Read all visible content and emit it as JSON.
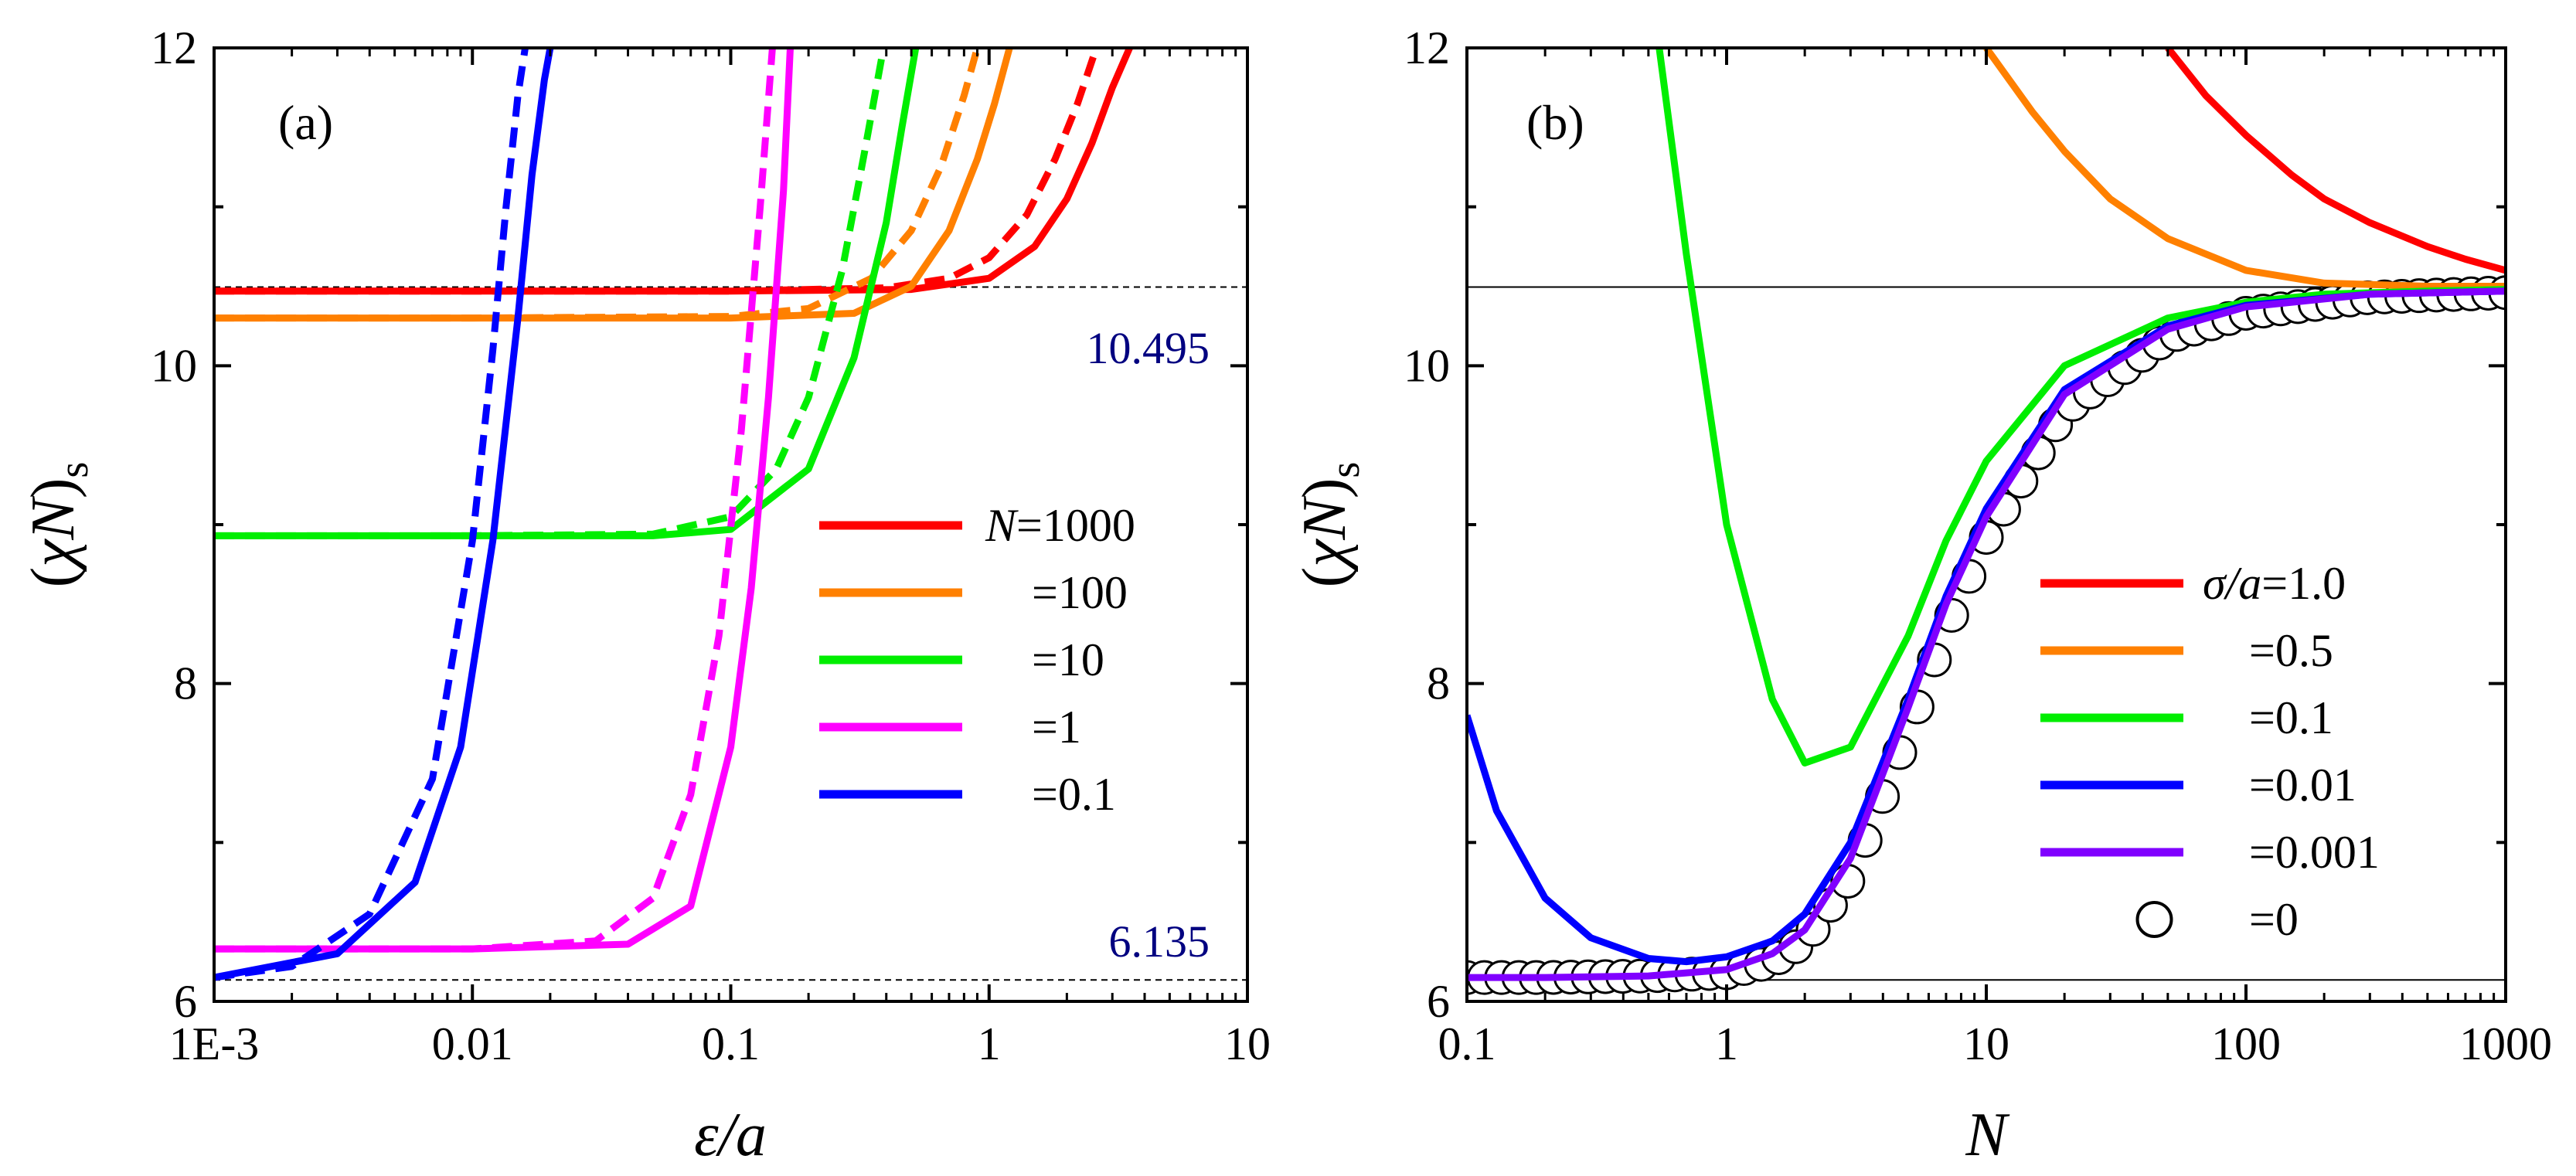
{
  "chart_data": [
    {
      "panel": "(a)",
      "type": "line",
      "xscale": "log",
      "xlim": [
        0.001,
        10
      ],
      "ylim": [
        6,
        12
      ],
      "xlabel": "ε/a",
      "ylabel": "(χN)s",
      "xticks": [
        "1E-3",
        "0.01",
        "0.1",
        "1",
        "10"
      ],
      "yticks": [
        "6",
        "8",
        "10",
        "12"
      ],
      "legend_position": "center-right",
      "legend_title": "N",
      "reference_lines": [
        {
          "y": 10.495,
          "label": "10.495",
          "color": "#000080"
        },
        {
          "y": 6.135,
          "label": "6.135",
          "color": "#000080"
        }
      ],
      "note": "solid and dashed curves per color",
      "series": [
        {
          "name": "=1000",
          "color": "#ff0000",
          "solid": {
            "x": [
              0.001,
              0.01,
              0.1,
              0.5,
              1,
              1.5,
              2,
              2.5,
              3,
              3.5
            ],
            "y": [
              10.47,
              10.47,
              10.47,
              10.48,
              10.55,
              10.75,
              11.05,
              11.4,
              11.75,
              12.0
            ]
          },
          "dashed": {
            "x": [
              0.001,
              0.01,
              0.1,
              0.4,
              0.7,
              1,
              1.4,
              1.8,
              2.2,
              2.6
            ],
            "y": [
              10.47,
              10.47,
              10.47,
              10.49,
              10.55,
              10.68,
              10.95,
              11.3,
              11.65,
              12.0
            ]
          }
        },
        {
          "name": "=100",
          "color": "#ff8000",
          "solid": {
            "x": [
              0.001,
              0.01,
              0.1,
              0.3,
              0.5,
              0.7,
              0.9,
              1.05,
              1.2
            ],
            "y": [
              10.3,
              10.3,
              10.3,
              10.33,
              10.5,
              10.85,
              11.3,
              11.65,
              12.0
            ]
          },
          "dashed": {
            "x": [
              0.001,
              0.01,
              0.1,
              0.2,
              0.35,
              0.5,
              0.65,
              0.8,
              0.9
            ],
            "y": [
              10.3,
              10.3,
              10.31,
              10.36,
              10.55,
              10.85,
              11.25,
              11.7,
              12.0
            ]
          }
        },
        {
          "name": "=10",
          "color": "#00ee00",
          "solid": {
            "x": [
              0.001,
              0.01,
              0.05,
              0.1,
              0.2,
              0.3,
              0.4,
              0.46,
              0.52
            ],
            "y": [
              8.93,
              8.93,
              8.93,
              8.97,
              9.35,
              10.05,
              10.9,
              11.5,
              12.0
            ]
          },
          "dashed": {
            "x": [
              0.001,
              0.01,
              0.05,
              0.1,
              0.15,
              0.2,
              0.27,
              0.33,
              0.39
            ],
            "y": [
              8.93,
              8.93,
              8.94,
              9.05,
              9.35,
              9.8,
              10.6,
              11.35,
              12.0
            ]
          }
        },
        {
          "name": "=1",
          "color": "#ff00ff",
          "solid": {
            "x": [
              0.001,
              0.01,
              0.04,
              0.07,
              0.1,
              0.12,
              0.14,
              0.16,
              0.17
            ],
            "y": [
              6.33,
              6.33,
              6.36,
              6.6,
              7.6,
              8.6,
              9.8,
              11.1,
              12.0
            ]
          },
          "dashed": {
            "x": [
              0.001,
              0.01,
              0.03,
              0.05,
              0.07,
              0.09,
              0.11,
              0.13,
              0.145
            ],
            "y": [
              6.33,
              6.33,
              6.38,
              6.65,
              7.3,
              8.3,
              9.6,
              11.0,
              12.0
            ]
          }
        },
        {
          "name": "=0.1",
          "color": "#0000ff",
          "solid": {
            "x": [
              0.001,
              0.003,
              0.006,
              0.009,
              0.012,
              0.015,
              0.017,
              0.019,
              0.02
            ],
            "y": [
              6.15,
              6.3,
              6.75,
              7.6,
              8.9,
              10.3,
              11.2,
              11.8,
              12.0
            ]
          },
          "dashed": {
            "x": [
              0.001,
              0.002,
              0.004,
              0.007,
              0.01,
              0.012,
              0.0135,
              0.015,
              0.016
            ],
            "y": [
              6.15,
              6.22,
              6.55,
              7.4,
              8.9,
              10.1,
              11.0,
              11.7,
              12.0
            ]
          }
        }
      ]
    },
    {
      "panel": "(b)",
      "type": "line",
      "xscale": "log",
      "xlim": [
        0.1,
        1000
      ],
      "ylim": [
        6,
        12
      ],
      "xlabel": "N",
      "ylabel": "(χN)s",
      "xticks": [
        "0.1",
        "1",
        "10",
        "100",
        "1000"
      ],
      "yticks": [
        "6",
        "8",
        "10",
        "12"
      ],
      "legend_position": "bottom-right",
      "legend_title": "σ/a",
      "reference_lines": [
        {
          "y": 10.495
        },
        {
          "y": 6.135
        }
      ],
      "series": [
        {
          "name": "=1.0",
          "color": "#ff0000",
          "style": "solid",
          "x": [
            50,
            70,
            100,
            150,
            200,
            300,
            500,
            700,
            1000
          ],
          "y": [
            12.0,
            11.7,
            11.45,
            11.2,
            11.05,
            10.9,
            10.75,
            10.67,
            10.6
          ]
        },
        {
          "name": "=0.5",
          "color": "#ff8000",
          "style": "solid",
          "x": [
            10,
            15,
            20,
            30,
            50,
            100,
            200,
            500,
            1000
          ],
          "y": [
            12.0,
            11.6,
            11.35,
            11.05,
            10.8,
            10.6,
            10.52,
            10.5,
            10.5
          ]
        },
        {
          "name": "=0.1",
          "color": "#00ee00",
          "style": "solid",
          "x": [
            0.55,
            0.7,
            1,
            1.5,
            2,
            3,
            5,
            7,
            10,
            20,
            50,
            100,
            200,
            500,
            1000
          ],
          "y": [
            12.0,
            10.7,
            9.0,
            7.9,
            7.5,
            7.6,
            8.3,
            8.9,
            9.4,
            10.0,
            10.3,
            10.4,
            10.45,
            10.47,
            10.48
          ]
        },
        {
          "name": "=0.01",
          "color": "#0000ff",
          "style": "solid",
          "x": [
            0.1,
            0.13,
            0.2,
            0.3,
            0.5,
            0.7,
            1,
            1.5,
            2,
            3,
            5,
            7,
            10,
            20,
            50,
            100,
            300,
            1000
          ],
          "y": [
            7.8,
            7.2,
            6.65,
            6.4,
            6.27,
            6.25,
            6.28,
            6.38,
            6.55,
            7.0,
            7.9,
            8.55,
            9.1,
            9.85,
            10.25,
            10.38,
            10.45,
            10.47
          ]
        },
        {
          "name": "=0.001",
          "color": "#8000ff",
          "style": "solid",
          "x": [
            0.1,
            0.2,
            0.5,
            1,
            1.5,
            2,
            3,
            5,
            7,
            10,
            20,
            50,
            100,
            300,
            1000
          ],
          "y": [
            6.15,
            6.15,
            6.16,
            6.2,
            6.3,
            6.45,
            6.9,
            7.85,
            8.5,
            9.05,
            9.82,
            10.23,
            10.37,
            10.45,
            10.47
          ]
        },
        {
          "name": "=0",
          "color": "#000000",
          "style": "circles",
          "x": [
            0.1,
            0.2,
            0.5,
            1,
            1.5,
            2,
            3,
            5,
            7,
            10,
            20,
            50,
            100,
            300,
            1000
          ],
          "y": [
            6.15,
            6.15,
            6.16,
            6.18,
            6.25,
            6.38,
            6.78,
            7.7,
            8.35,
            8.92,
            9.72,
            10.18,
            10.33,
            10.43,
            10.46
          ]
        }
      ]
    }
  ]
}
